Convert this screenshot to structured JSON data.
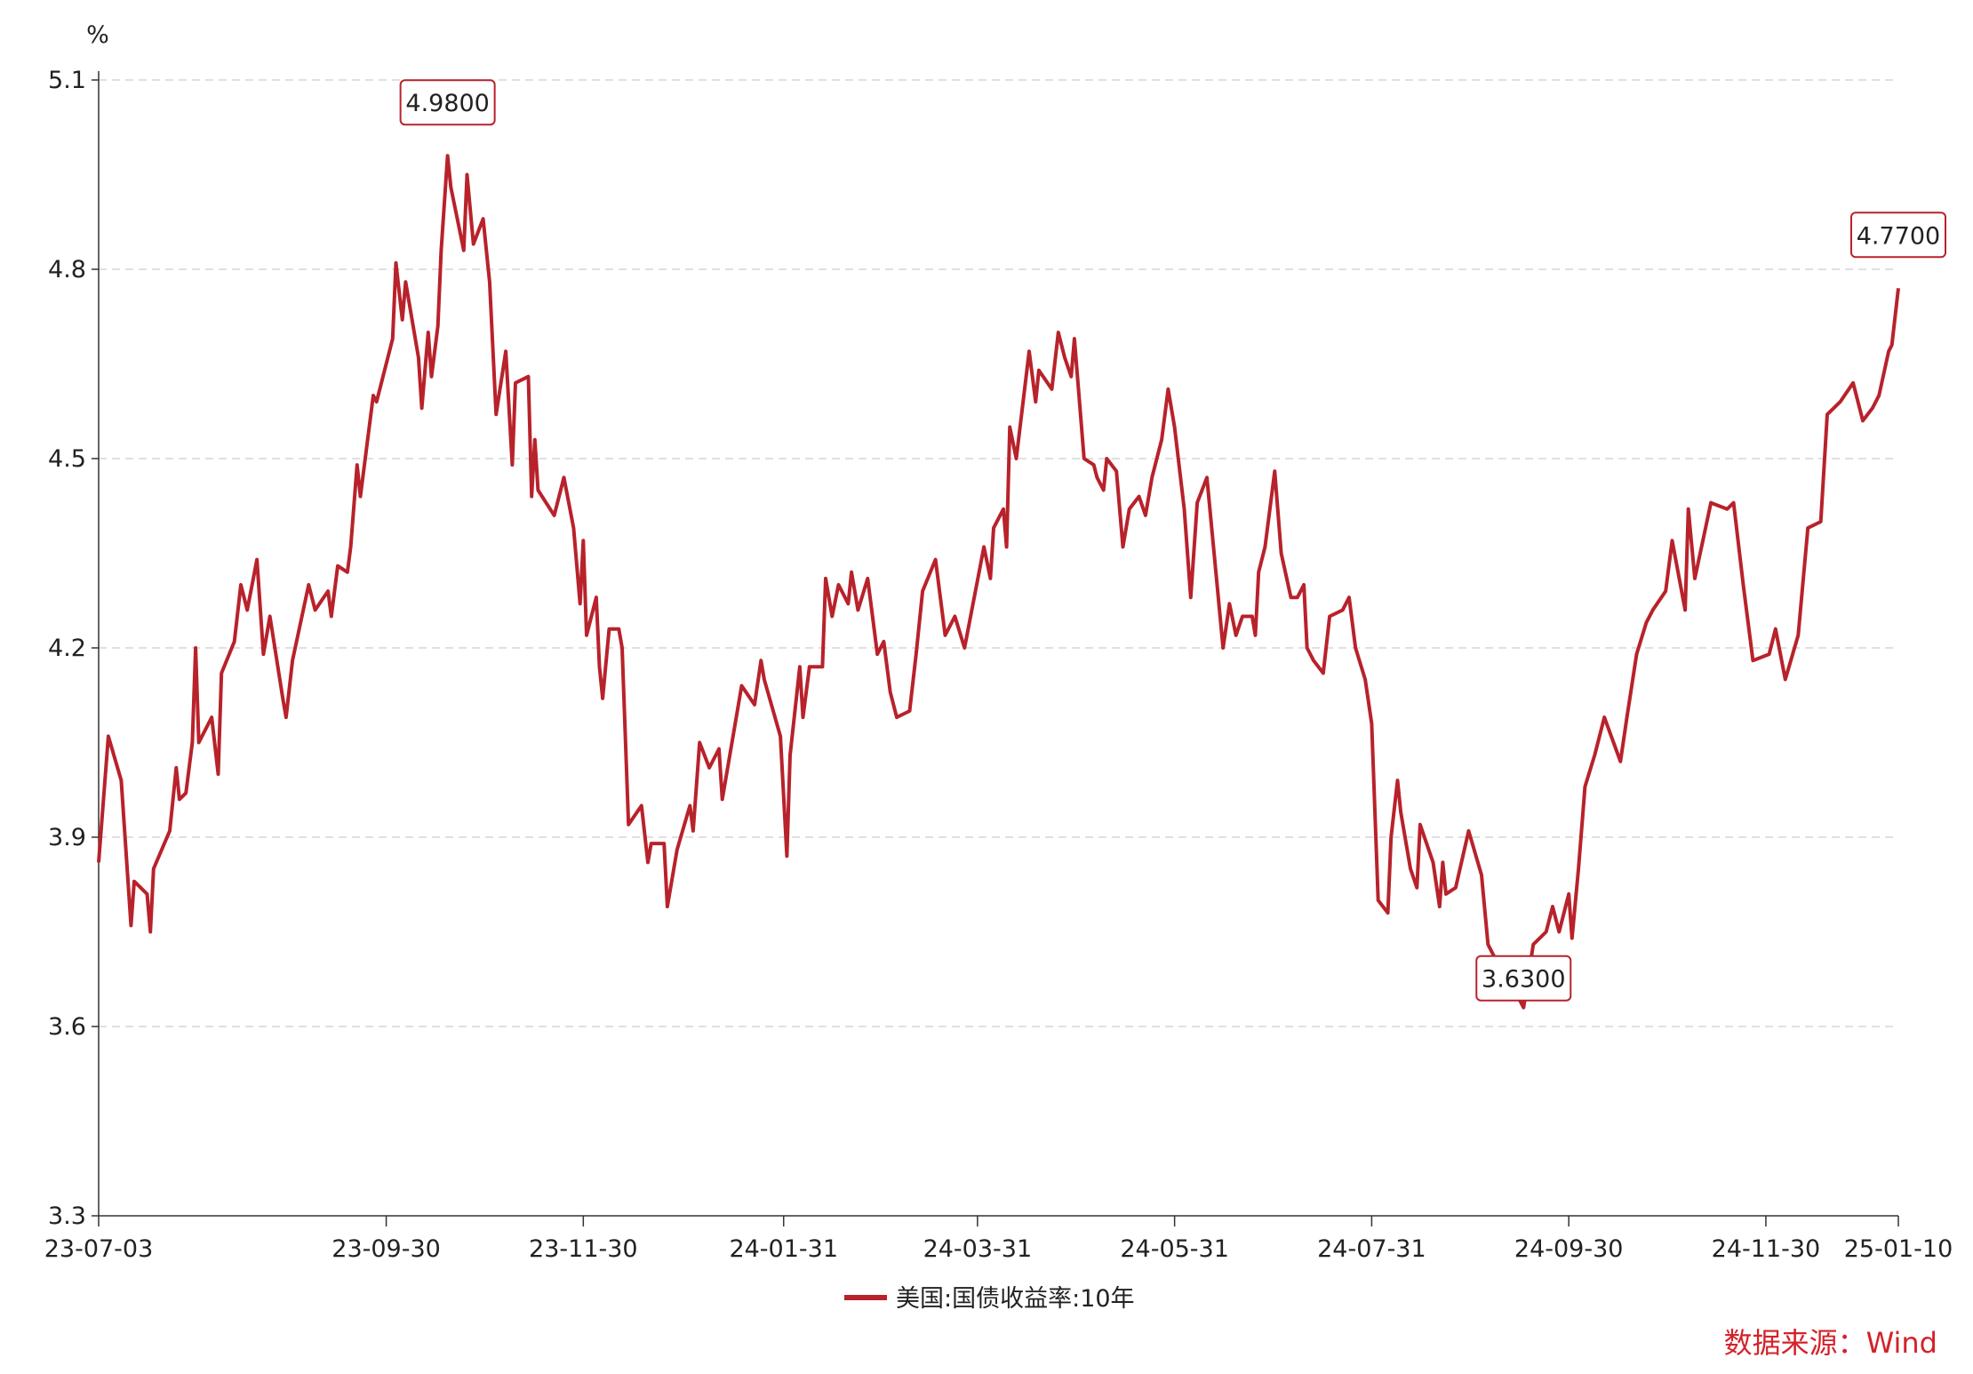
{
  "chart_data": {
    "type": "line",
    "y_unit": "%",
    "source": "数据来源：Wind",
    "x": [
      "23-07-03",
      "23-07-06",
      "23-07-10",
      "23-07-13",
      "23-07-14",
      "23-07-18",
      "23-07-19",
      "23-07-20",
      "23-07-25",
      "23-07-27",
      "23-07-28",
      "23-07-30",
      "23-08-01",
      "23-08-02",
      "23-08-03",
      "23-08-07",
      "23-08-09",
      "23-08-10",
      "23-08-14",
      "23-08-16",
      "23-08-18",
      "23-08-21",
      "23-08-23",
      "23-08-25",
      "23-08-29",
      "23-08-30",
      "23-09-01",
      "23-09-06",
      "23-09-08",
      "23-09-12",
      "23-09-13",
      "23-09-15",
      "23-09-18",
      "23-09-19",
      "23-09-21",
      "23-09-22",
      "23-09-26",
      "23-09-27",
      "23-10-02",
      "23-10-03",
      "23-10-05",
      "23-10-06",
      "23-10-10",
      "23-10-11",
      "23-10-13",
      "23-10-14",
      "23-10-16",
      "23-10-17",
      "23-10-19",
      "23-10-20",
      "23-10-24",
      "23-10-25",
      "23-10-27",
      "23-10-30",
      "23-11-01",
      "23-11-03",
      "23-11-06",
      "23-11-08",
      "23-11-09",
      "23-11-13",
      "23-11-14",
      "23-11-15",
      "23-11-16",
      "23-11-21",
      "23-11-24",
      "23-11-27",
      "23-11-29",
      "23-11-30",
      "23-12-01",
      "23-12-04",
      "23-12-05",
      "23-12-06",
      "23-12-08",
      "23-12-11",
      "23-12-12",
      "23-12-14",
      "23-12-18",
      "23-12-20",
      "23-12-21",
      "23-12-25",
      "23-12-26",
      "23-12-29",
      "24-01-02",
      "24-01-03",
      "24-01-05",
      "24-01-08",
      "24-01-11",
      "24-01-12",
      "24-01-18",
      "24-01-22",
      "24-01-24",
      "24-01-25",
      "24-01-30",
      "24-02-01",
      "24-02-02",
      "24-02-05",
      "24-02-06",
      "24-02-08",
      "24-02-12",
      "24-02-13",
      "24-02-15",
      "24-02-17",
      "24-02-20",
      "24-02-21",
      "24-02-23",
      "24-02-26",
      "24-02-29",
      "24-03-02",
      "24-03-04",
      "24-03-06",
      "24-03-10",
      "24-03-12",
      "24-03-14",
      "24-03-18",
      "24-03-21",
      "24-03-24",
      "24-03-27",
      "24-04-02",
      "24-04-04",
      "24-04-05",
      "24-04-08",
      "24-04-09",
      "24-04-10",
      "24-04-12",
      "24-04-16",
      "24-04-18",
      "24-04-19",
      "24-04-23",
      "24-04-25",
      "24-04-27",
      "24-04-29",
      "24-04-30",
      "24-05-03",
      "24-05-06",
      "24-05-07",
      "24-05-09",
      "24-05-10",
      "24-05-13",
      "24-05-15",
      "24-05-17",
      "24-05-20",
      "24-05-22",
      "24-05-24",
      "24-05-27",
      "24-05-29",
      "24-05-31",
      "24-06-03",
      "24-06-05",
      "24-06-07",
      "24-06-10",
      "24-06-15",
      "24-06-17",
      "24-06-19",
      "24-06-21",
      "24-06-24",
      "24-06-25",
      "24-06-26",
      "24-06-28",
      "24-07-01",
      "24-07-03",
      "24-07-06",
      "24-07-08",
      "24-07-10",
      "24-07-11",
      "24-07-13",
      "24-07-16",
      "24-07-18",
      "24-07-22",
      "24-07-24",
      "24-07-26",
      "24-07-29",
      "24-07-31",
      "24-08-02",
      "24-08-05",
      "24-08-06",
      "24-08-08",
      "24-08-09",
      "24-08-12",
      "24-08-14",
      "24-08-15",
      "24-08-19",
      "24-08-21",
      "24-08-22",
      "24-08-23",
      "24-08-26",
      "24-08-30",
      "24-09-03",
      "24-09-05",
      "24-09-08",
      "24-09-12",
      "24-09-16",
      "24-09-19",
      "24-09-23",
      "24-09-25",
      "24-09-27",
      "24-09-30",
      "24-10-01",
      "24-10-03",
      "24-10-05",
      "24-10-08",
      "24-10-11",
      "24-10-16",
      "24-10-18",
      "24-10-21",
      "24-10-24",
      "24-10-26",
      "24-10-30",
      "24-11-01",
      "24-11-05",
      "24-11-06",
      "24-11-08",
      "24-11-13",
      "24-11-18",
      "24-11-20",
      "24-11-23",
      "24-11-26",
      "24-12-01",
      "24-12-03",
      "24-12-06",
      "24-12-10",
      "24-12-13",
      "24-12-17",
      "24-12-19",
      "24-12-23",
      "24-12-27",
      "24-12-30",
      "25-01-02",
      "25-01-04",
      "25-01-07",
      "25-01-08",
      "25-01-10"
    ],
    "series": [
      {
        "name": "美国:国债收益率:10年",
        "color": "#b8222b",
        "values": [
          3.86,
          4.06,
          3.99,
          3.76,
          3.83,
          3.81,
          3.75,
          3.85,
          3.91,
          4.01,
          3.96,
          3.97,
          4.05,
          4.2,
          4.05,
          4.09,
          4.0,
          4.16,
          4.21,
          4.3,
          4.26,
          4.34,
          4.19,
          4.25,
          4.12,
          4.09,
          4.18,
          4.3,
          4.26,
          4.29,
          4.25,
          4.33,
          4.32,
          4.36,
          4.49,
          4.44,
          4.6,
          4.59,
          4.69,
          4.81,
          4.72,
          4.78,
          4.66,
          4.58,
          4.7,
          4.63,
          4.71,
          4.83,
          4.98,
          4.93,
          4.83,
          4.95,
          4.84,
          4.88,
          4.78,
          4.57,
          4.67,
          4.49,
          4.62,
          4.63,
          4.44,
          4.53,
          4.45,
          4.41,
          4.47,
          4.39,
          4.27,
          4.37,
          4.22,
          4.28,
          4.17,
          4.12,
          4.23,
          4.23,
          4.2,
          3.92,
          3.95,
          3.86,
          3.89,
          3.89,
          3.79,
          3.88,
          3.95,
          3.91,
          4.05,
          4.01,
          4.04,
          3.96,
          4.14,
          4.11,
          4.18,
          4.15,
          4.06,
          3.87,
          4.03,
          4.17,
          4.09,
          4.17,
          4.17,
          4.31,
          4.25,
          4.3,
          4.27,
          4.32,
          4.26,
          4.31,
          4.19,
          4.21,
          4.13,
          4.09,
          4.1,
          4.19,
          4.29,
          4.34,
          4.22,
          4.25,
          4.2,
          4.36,
          4.31,
          4.39,
          4.42,
          4.36,
          4.55,
          4.5,
          4.67,
          4.59,
          4.64,
          4.61,
          4.7,
          4.66,
          4.63,
          4.69,
          4.5,
          4.49,
          4.47,
          4.45,
          4.5,
          4.48,
          4.36,
          4.42,
          4.44,
          4.41,
          4.47,
          4.53,
          4.61,
          4.55,
          4.42,
          4.28,
          4.43,
          4.47,
          4.2,
          4.27,
          4.22,
          4.25,
          4.25,
          4.22,
          4.32,
          4.36,
          4.48,
          4.35,
          4.28,
          4.28,
          4.3,
          4.2,
          4.18,
          4.16,
          4.25,
          4.26,
          4.28,
          4.2,
          4.15,
          4.08,
          3.8,
          3.78,
          3.9,
          3.99,
          3.94,
          3.85,
          3.82,
          3.92,
          3.86,
          3.79,
          3.86,
          3.81,
          3.82,
          3.91,
          3.84,
          3.73,
          3.7,
          3.67,
          3.63,
          3.73,
          3.75,
          3.79,
          3.75,
          3.81,
          3.74,
          3.85,
          3.98,
          4.03,
          4.09,
          4.02,
          4.09,
          4.19,
          4.24,
          4.26,
          4.29,
          4.37,
          4.26,
          4.42,
          4.31,
          4.43,
          4.42,
          4.43,
          4.3,
          4.18,
          4.19,
          4.23,
          4.15,
          4.22,
          4.39,
          4.4,
          4.57,
          4.59,
          4.62,
          4.56,
          4.58,
          4.6,
          4.67,
          4.68,
          4.77
        ]
      }
    ],
    "annotations": [
      {
        "x": "23-10-19",
        "value": 4.98,
        "label": "4.9800"
      },
      {
        "x": "24-09-16",
        "value": 3.63,
        "label": "3.6300"
      },
      {
        "x": "25-01-10",
        "value": 4.77,
        "label": "4.7700"
      }
    ],
    "xlim": [
      "23-07-03",
      "25-01-10"
    ],
    "xticks": [
      "23-07-03",
      "23-09-30",
      "23-11-30",
      "24-01-31",
      "24-03-31",
      "24-05-31",
      "24-07-31",
      "24-09-30",
      "24-11-30",
      "25-01-10"
    ],
    "ylim": [
      3.3,
      5.1
    ],
    "yticks": [
      3.3,
      3.6,
      3.9,
      4.2,
      4.5,
      4.8,
      5.1
    ],
    "grid": true
  }
}
